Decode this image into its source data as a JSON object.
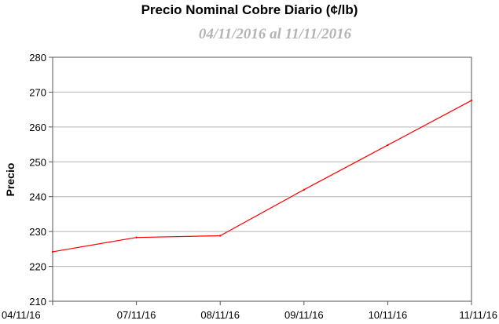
{
  "chart_data": {
    "type": "line",
    "title": "Precio Nominal Cobre Diario (¢/lb)",
    "subtitle": "04/11/2016 al 11/11/2016",
    "xlabel": "",
    "ylabel": "Precio",
    "categories": [
      "04/11/16",
      "07/11/16",
      "08/11/16",
      "09/11/16",
      "10/11/16",
      "11/11/16"
    ],
    "series": [
      {
        "values": [
          224.2,
          228.3,
          228.8,
          242.0,
          254.8,
          267.6
        ],
        "color": "#ff0000"
      }
    ],
    "ylim": [
      210,
      280
    ],
    "yticks": [
      210,
      220,
      230,
      240,
      250,
      260,
      270,
      280
    ],
    "grid": true,
    "legend": "none"
  }
}
